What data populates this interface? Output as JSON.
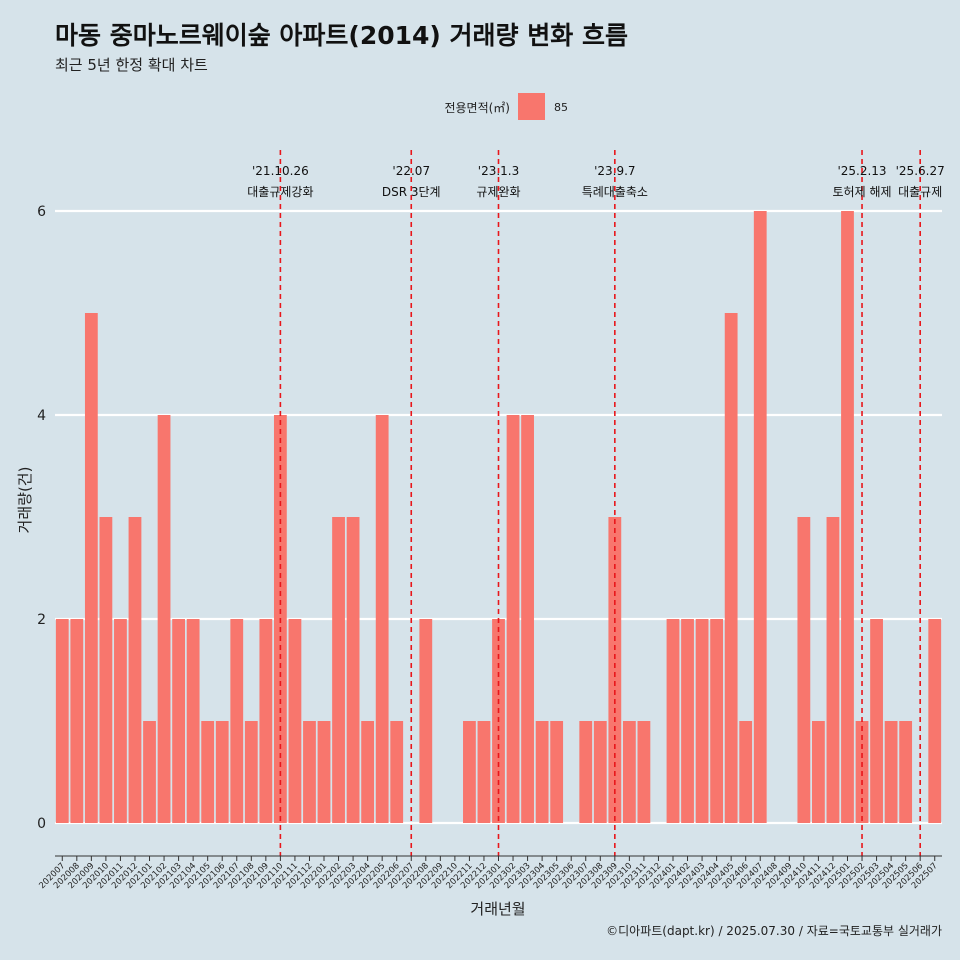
{
  "chart_data": {
    "type": "bar",
    "title": "마동 중마노르웨이숲 아파트(2014) 거래량 변화 흐름",
    "subtitle": "최근 5년 한정 확대 차트",
    "xlabel": "거래년월",
    "ylabel": "거래량(건)",
    "ylim": [
      0,
      6
    ],
    "yticks": [
      0,
      2,
      4,
      6
    ],
    "grid": "horizontal",
    "legend": {
      "title": "전용면적(㎡)",
      "position": "top",
      "entries": [
        {
          "label": "85",
          "color": "#f8766d"
        }
      ]
    },
    "categories": [
      "202007",
      "202008",
      "202009",
      "202010",
      "202011",
      "202012",
      "202101",
      "202102",
      "202103",
      "202104",
      "202105",
      "202106",
      "202107",
      "202108",
      "202109",
      "202110",
      "202111",
      "202112",
      "202201",
      "202202",
      "202203",
      "202204",
      "202205",
      "202206",
      "202207",
      "202208",
      "202209",
      "202210",
      "202211",
      "202212",
      "202301",
      "202302",
      "202303",
      "202304",
      "202305",
      "202306",
      "202307",
      "202308",
      "202309",
      "202310",
      "202311",
      "202312",
      "202401",
      "202402",
      "202403",
      "202404",
      "202405",
      "202406",
      "202407",
      "202408",
      "202409",
      "202410",
      "202411",
      "202412",
      "202501",
      "202502",
      "202503",
      "202504",
      "202505",
      "202506",
      "202507"
    ],
    "series": [
      {
        "name": "85",
        "color": "#f8766d",
        "values": [
          2,
          2,
          5,
          3,
          2,
          3,
          1,
          4,
          2,
          2,
          1,
          1,
          2,
          1,
          2,
          4,
          2,
          1,
          1,
          3,
          3,
          1,
          4,
          1,
          0,
          2,
          0,
          0,
          1,
          1,
          2,
          4,
          4,
          1,
          1,
          0,
          1,
          1,
          3,
          1,
          1,
          0,
          2,
          2,
          2,
          2,
          5,
          1,
          6,
          0,
          0,
          3,
          1,
          3,
          6,
          1,
          2,
          1,
          1,
          0,
          2
        ]
      }
    ],
    "annotations": [
      {
        "category": "202110",
        "date": "'21.10.26",
        "label": "대출규제강화"
      },
      {
        "category": "202207",
        "date": "'22.07",
        "label": "DSR 3단계"
      },
      {
        "category": "202301",
        "date": "'23.1.3",
        "label": "규제완화"
      },
      {
        "category": "202309",
        "date": "'23.9.7",
        "label": "특례대출축소"
      },
      {
        "category": "202502",
        "date": "'25.2.13",
        "label": "토허제 해제"
      },
      {
        "category": "202506",
        "date": "'25.6.27",
        "label": "대출규제"
      }
    ],
    "caption": "©디아파트(dapt.kr) / 2025.07.30 / 자료=국토교통부 실거래가"
  },
  "colors": {
    "background": "#d6e3ea",
    "bar": "#f8766d",
    "annotation_line": "#e8161b",
    "grid": "#ffffff"
  }
}
